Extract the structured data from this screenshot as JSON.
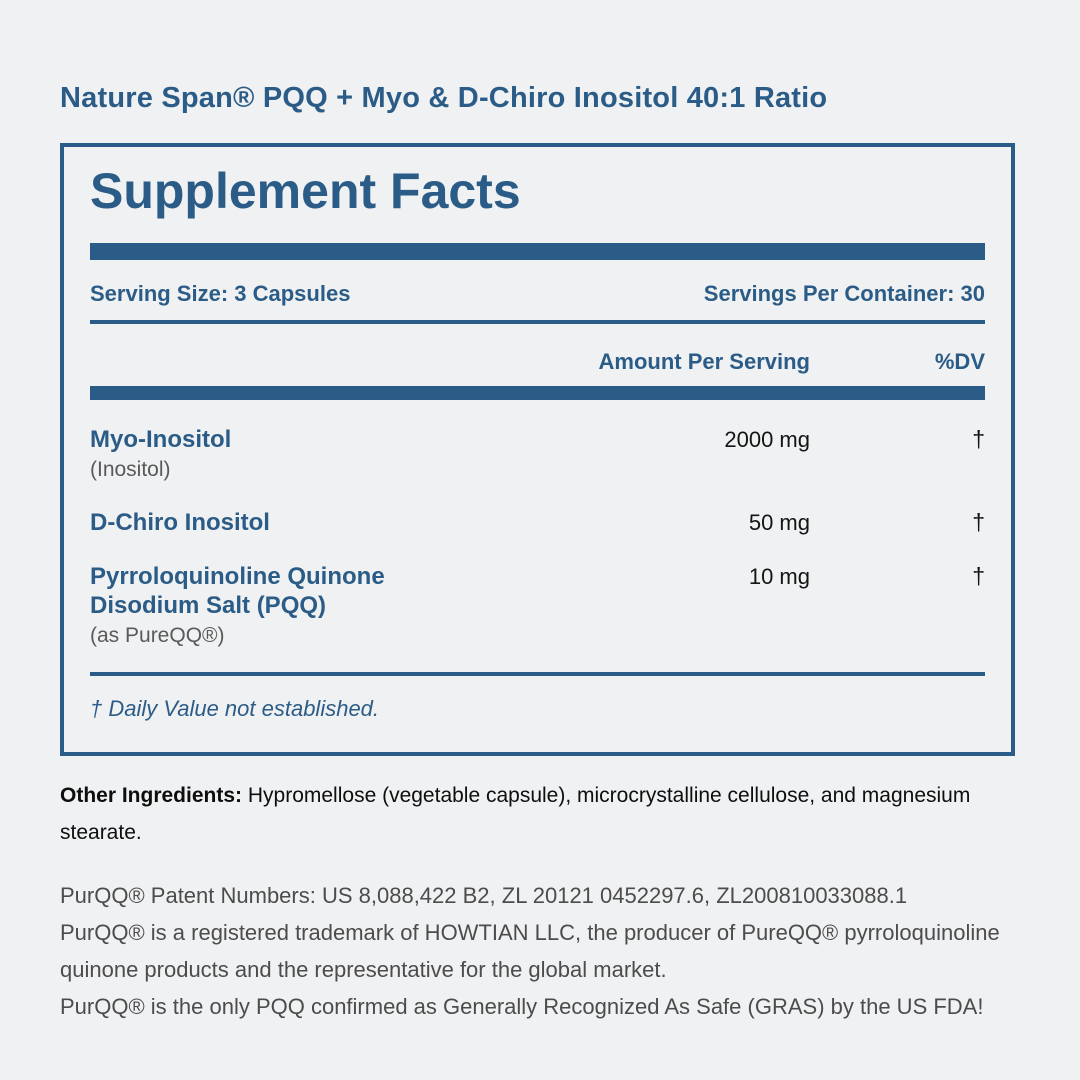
{
  "colors": {
    "background": "#f0f1f2",
    "accent_blue": "#2b5c87",
    "body_black": "#141414",
    "muted_gray": "#5a5a5a",
    "note_gray": "#4c4c4c"
  },
  "title": "Nature Span® PQQ + Myo & D-Chiro Inositol 40:1 Ratio",
  "panel": {
    "heading": "Supplement Facts",
    "serving_size": "Serving Size: 3 Capsules",
    "servings_per_container": "Servings Per Container: 30",
    "columns": {
      "amount": "Amount Per Serving",
      "dv": "%DV"
    },
    "rows": [
      {
        "name": "Myo-Inositol",
        "sub": "(Inositol)",
        "amount": "2000 mg",
        "dv": "†"
      },
      {
        "name": "D-Chiro Inositol",
        "amount": "50 mg",
        "dv": "†"
      },
      {
        "name": "Pyrroloquinoline Quinone\nDisodium Salt (PQQ)",
        "sub": "(as PureQQ®)",
        "amount": "10 mg",
        "dv": "†"
      }
    ],
    "footnote": "† Daily Value not established."
  },
  "other_ingredients": {
    "label": "Other Ingredients:",
    "text": " Hypromellose (vegetable capsule), microcrystalline cellulose, and magnesium stearate."
  },
  "trademark_notes": [
    "PurQQ® Patent Numbers: US 8,088,422 B2, ZL 20121 0452297.6, ZL200810033088.1",
    "PurQQ® is a registered trademark of HOWTIAN LLC, the producer of PureQQ® pyrroloquinoline quinone products and the representative for the global market.",
    "PurQQ® is the only PQQ confirmed as Generally Recognized As Safe (GRAS) by the US FDA!"
  ]
}
